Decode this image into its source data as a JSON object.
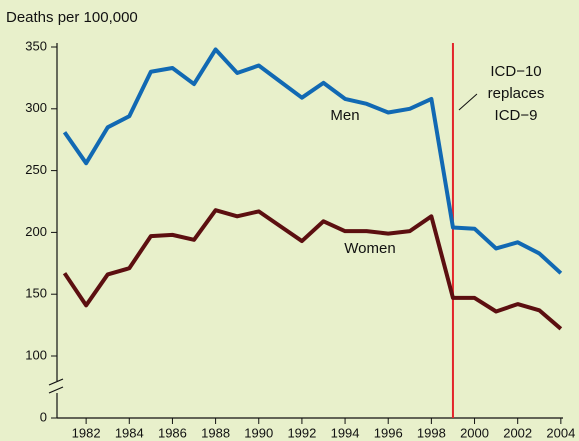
{
  "chart_data": {
    "type": "line",
    "y_axis_label": "Deaths per 100,000",
    "x": [
      1981,
      1982,
      1983,
      1984,
      1985,
      1986,
      1987,
      1988,
      1989,
      1990,
      1991,
      1992,
      1993,
      1994,
      1995,
      1996,
      1997,
      1998,
      1999,
      2000,
      2001,
      2002,
      2003,
      2004
    ],
    "series": [
      {
        "name": "Men",
        "color": "#1169b3",
        "values": [
          281,
          256,
          285,
          294,
          330,
          333,
          320,
          348,
          329,
          335,
          322,
          309,
          321,
          308,
          304,
          297,
          300,
          308,
          204,
          203,
          187,
          192,
          183,
          167
        ]
      },
      {
        "name": "Women",
        "color": "#5c0f10",
        "values": [
          167,
          141,
          166,
          171,
          197,
          198,
          194,
          218,
          213,
          217,
          205,
          193,
          209,
          201,
          201,
          199,
          201,
          213,
          147,
          147,
          136,
          142,
          137,
          122
        ]
      }
    ],
    "xlim": [
      1980.65,
      2004.1
    ],
    "xticks": [
      1982,
      1984,
      1986,
      1988,
      1990,
      1992,
      1994,
      1996,
      1998,
      2000,
      2002,
      2004
    ],
    "ylim": [
      0,
      350
    ],
    "yticks": [
      0,
      100,
      150,
      200,
      250,
      300,
      350
    ],
    "axis_break": true,
    "marker": {
      "x": 1999,
      "color": "#e3242b",
      "label_lines": [
        "ICD−10",
        "replaces",
        "ICD−9"
      ]
    },
    "grid": false
  }
}
